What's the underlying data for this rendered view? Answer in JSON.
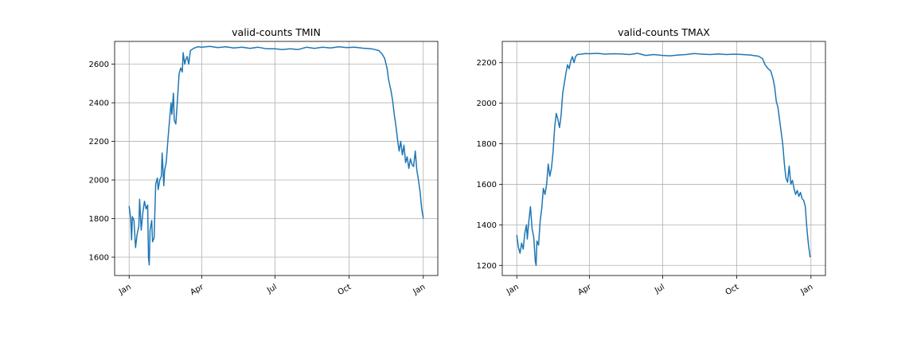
{
  "chart_data": [
    {
      "type": "line",
      "title": "valid-counts TMIN",
      "xlabel": "",
      "ylabel": "",
      "x_tick_labels": [
        "Jan",
        "Apr",
        "Jul",
        "Oct",
        "Jan"
      ],
      "x_tick_days": [
        0,
        90,
        181,
        273,
        365
      ],
      "xlim": [
        -18,
        383
      ],
      "ylim": [
        1505,
        2718
      ],
      "y_ticks": [
        1600,
        1800,
        2000,
        2200,
        2400,
        2600
      ],
      "grid": true,
      "color": "#1f77b4",
      "points": [
        [
          0,
          1865
        ],
        [
          2,
          1800
        ],
        [
          3,
          1690
        ],
        [
          4,
          1810
        ],
        [
          6,
          1790
        ],
        [
          8,
          1650
        ],
        [
          10,
          1720
        ],
        [
          12,
          1760
        ],
        [
          13,
          1900
        ],
        [
          15,
          1740
        ],
        [
          17,
          1830
        ],
        [
          19,
          1890
        ],
        [
          21,
          1850
        ],
        [
          23,
          1870
        ],
        [
          24,
          1600
        ],
        [
          25,
          1560
        ],
        [
          26,
          1740
        ],
        [
          28,
          1790
        ],
        [
          29,
          1680
        ],
        [
          31,
          1700
        ],
        [
          33,
          1980
        ],
        [
          35,
          2010
        ],
        [
          36,
          1950
        ],
        [
          38,
          2000
        ],
        [
          40,
          2020
        ],
        [
          41,
          2140
        ],
        [
          43,
          1970
        ],
        [
          44,
          2050
        ],
        [
          46,
          2090
        ],
        [
          48,
          2200
        ],
        [
          50,
          2300
        ],
        [
          52,
          2400
        ],
        [
          53,
          2340
        ],
        [
          55,
          2450
        ],
        [
          56,
          2310
        ],
        [
          58,
          2290
        ],
        [
          60,
          2420
        ],
        [
          62,
          2550
        ],
        [
          64,
          2580
        ],
        [
          66,
          2560
        ],
        [
          67,
          2660
        ],
        [
          69,
          2600
        ],
        [
          70,
          2620
        ],
        [
          72,
          2640
        ],
        [
          74,
          2600
        ],
        [
          76,
          2670
        ],
        [
          80,
          2682
        ],
        [
          85,
          2690
        ],
        [
          90,
          2688
        ],
        [
          100,
          2692
        ],
        [
          110,
          2686
        ],
        [
          120,
          2690
        ],
        [
          130,
          2684
        ],
        [
          140,
          2688
        ],
        [
          150,
          2682
        ],
        [
          160,
          2688
        ],
        [
          170,
          2680
        ],
        [
          181,
          2680
        ],
        [
          190,
          2676
        ],
        [
          200,
          2680
        ],
        [
          210,
          2676
        ],
        [
          220,
          2688
        ],
        [
          230,
          2682
        ],
        [
          240,
          2688
        ],
        [
          250,
          2684
        ],
        [
          260,
          2690
        ],
        [
          270,
          2686
        ],
        [
          280,
          2688
        ],
        [
          290,
          2683
        ],
        [
          300,
          2680
        ],
        [
          305,
          2676
        ],
        [
          310,
          2670
        ],
        [
          314,
          2652
        ],
        [
          317,
          2630
        ],
        [
          320,
          2580
        ],
        [
          322,
          2520
        ],
        [
          325,
          2460
        ],
        [
          327,
          2410
        ],
        [
          329,
          2340
        ],
        [
          331,
          2280
        ],
        [
          333,
          2210
        ],
        [
          335,
          2150
        ],
        [
          337,
          2200
        ],
        [
          339,
          2130
        ],
        [
          341,
          2180
        ],
        [
          343,
          2090
        ],
        [
          345,
          2120
        ],
        [
          347,
          2060
        ],
        [
          349,
          2110
        ],
        [
          351,
          2080
        ],
        [
          353,
          2070
        ],
        [
          355,
          2150
        ],
        [
          357,
          2050
        ],
        [
          359,
          2000
        ],
        [
          361,
          1940
        ],
        [
          363,
          1850
        ],
        [
          365,
          1800
        ]
      ]
    },
    {
      "type": "line",
      "title": "valid-counts TMAX",
      "xlabel": "",
      "ylabel": "",
      "x_tick_labels": [
        "Jan",
        "Apr",
        "Jul",
        "Oct",
        "Jan"
      ],
      "x_tick_days": [
        0,
        90,
        181,
        273,
        365
      ],
      "xlim": [
        -18,
        383
      ],
      "ylim": [
        1150,
        2305
      ],
      "y_ticks": [
        1200,
        1400,
        1600,
        1800,
        2000,
        2200
      ],
      "grid": true,
      "color": "#1f77b4",
      "points": [
        [
          0,
          1350
        ],
        [
          2,
          1290
        ],
        [
          4,
          1260
        ],
        [
          6,
          1310
        ],
        [
          8,
          1280
        ],
        [
          10,
          1360
        ],
        [
          12,
          1400
        ],
        [
          13,
          1330
        ],
        [
          15,
          1420
        ],
        [
          17,
          1490
        ],
        [
          19,
          1380
        ],
        [
          21,
          1340
        ],
        [
          23,
          1220
        ],
        [
          24,
          1200
        ],
        [
          25,
          1320
        ],
        [
          27,
          1300
        ],
        [
          29,
          1420
        ],
        [
          31,
          1480
        ],
        [
          33,
          1580
        ],
        [
          35,
          1550
        ],
        [
          37,
          1600
        ],
        [
          39,
          1700
        ],
        [
          41,
          1640
        ],
        [
          43,
          1680
        ],
        [
          45,
          1760
        ],
        [
          47,
          1880
        ],
        [
          49,
          1950
        ],
        [
          51,
          1920
        ],
        [
          53,
          1880
        ],
        [
          55,
          1940
        ],
        [
          57,
          2050
        ],
        [
          59,
          2100
        ],
        [
          61,
          2150
        ],
        [
          63,
          2190
        ],
        [
          65,
          2170
        ],
        [
          67,
          2210
        ],
        [
          69,
          2230
        ],
        [
          71,
          2200
        ],
        [
          73,
          2230
        ],
        [
          75,
          2240
        ],
        [
          80,
          2242
        ],
        [
          85,
          2245
        ],
        [
          90,
          2244
        ],
        [
          100,
          2246
        ],
        [
          110,
          2242
        ],
        [
          120,
          2244
        ],
        [
          130,
          2243
        ],
        [
          140,
          2240
        ],
        [
          150,
          2246
        ],
        [
          160,
          2236
        ],
        [
          170,
          2240
        ],
        [
          181,
          2236
        ],
        [
          190,
          2234
        ],
        [
          200,
          2238
        ],
        [
          210,
          2240
        ],
        [
          220,
          2245
        ],
        [
          230,
          2242
        ],
        [
          240,
          2240
        ],
        [
          250,
          2243
        ],
        [
          260,
          2240
        ],
        [
          270,
          2242
        ],
        [
          280,
          2240
        ],
        [
          290,
          2238
        ],
        [
          300,
          2232
        ],
        [
          305,
          2220
        ],
        [
          308,
          2190
        ],
        [
          312,
          2170
        ],
        [
          315,
          2160
        ],
        [
          318,
          2120
        ],
        [
          320,
          2080
        ],
        [
          322,
          2010
        ],
        [
          324,
          1980
        ],
        [
          326,
          1920
        ],
        [
          328,
          1860
        ],
        [
          330,
          1800
        ],
        [
          332,
          1700
        ],
        [
          334,
          1630
        ],
        [
          336,
          1610
        ],
        [
          338,
          1690
        ],
        [
          340,
          1600
        ],
        [
          342,
          1620
        ],
        [
          344,
          1580
        ],
        [
          346,
          1550
        ],
        [
          348,
          1570
        ],
        [
          350,
          1540
        ],
        [
          352,
          1560
        ],
        [
          354,
          1530
        ],
        [
          356,
          1520
        ],
        [
          358,
          1490
        ],
        [
          360,
          1380
        ],
        [
          362,
          1300
        ],
        [
          364,
          1240
        ]
      ]
    }
  ]
}
